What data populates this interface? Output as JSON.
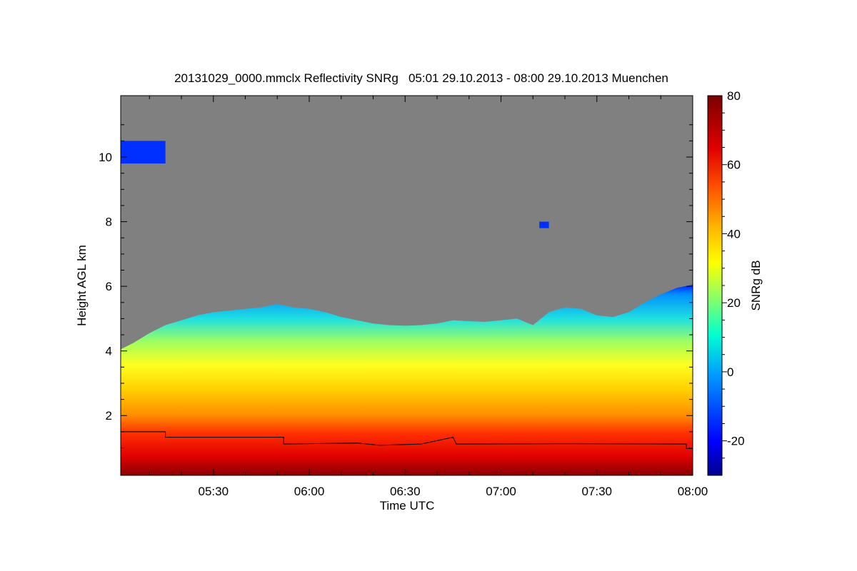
{
  "chart_data": {
    "type": "heatmap",
    "title": "20131029_0000.mmclx Reflectivity SNRg   05:01 29.10.2013 - 08:00 29.10.2013 Muenchen",
    "xlabel": "Time UTC",
    "ylabel": "Height AGL km",
    "colorbar_label": "SNRg dB",
    "x_ticks": [
      {
        "value": 330,
        "label": "05:30"
      },
      {
        "value": 360,
        "label": "06:00"
      },
      {
        "value": 390,
        "label": "06:30"
      },
      {
        "value": 420,
        "label": "07:00"
      },
      {
        "value": 450,
        "label": "07:30"
      },
      {
        "value": 480,
        "label": "08:00"
      }
    ],
    "x_range_minutes": [
      301,
      480
    ],
    "y_ticks": [
      {
        "value": 2,
        "label": "2"
      },
      {
        "value": 4,
        "label": "4"
      },
      {
        "value": 6,
        "label": "6"
      },
      {
        "value": 8,
        "label": "8"
      },
      {
        "value": 10,
        "label": "10"
      }
    ],
    "ylim": [
      0.15,
      11.9
    ],
    "colorbar": {
      "range": [
        -30,
        80
      ],
      "ticks": [
        {
          "value": -20,
          "label": "-20"
        },
        {
          "value": 0,
          "label": "0"
        },
        {
          "value": 20,
          "label": "20"
        },
        {
          "value": 40,
          "label": "40"
        },
        {
          "value": 60,
          "label": "60"
        },
        {
          "value": 80,
          "label": "80"
        }
      ]
    },
    "cloud_top_km": [
      [
        301,
        4.05
      ],
      [
        305,
        4.25
      ],
      [
        310,
        4.55
      ],
      [
        315,
        4.8
      ],
      [
        320,
        4.95
      ],
      [
        325,
        5.1
      ],
      [
        330,
        5.2
      ],
      [
        335,
        5.25
      ],
      [
        340,
        5.3
      ],
      [
        345,
        5.35
      ],
      [
        350,
        5.45
      ],
      [
        355,
        5.35
      ],
      [
        360,
        5.3
      ],
      [
        365,
        5.2
      ],
      [
        370,
        5.05
      ],
      [
        375,
        4.95
      ],
      [
        380,
        4.85
      ],
      [
        385,
        4.8
      ],
      [
        390,
        4.78
      ],
      [
        395,
        4.8
      ],
      [
        400,
        4.85
      ],
      [
        405,
        4.95
      ],
      [
        410,
        4.92
      ],
      [
        415,
        4.9
      ],
      [
        420,
        4.95
      ],
      [
        425,
        5.0
      ],
      [
        430,
        4.8
      ],
      [
        435,
        5.2
      ],
      [
        440,
        5.35
      ],
      [
        445,
        5.3
      ],
      [
        450,
        5.1
      ],
      [
        455,
        5.05
      ],
      [
        460,
        5.2
      ],
      [
        465,
        5.5
      ],
      [
        470,
        5.75
      ],
      [
        475,
        5.95
      ],
      [
        480,
        6.05
      ]
    ],
    "boundary_line_km": [
      [
        301,
        1.5
      ],
      [
        315,
        1.5
      ],
      [
        315,
        1.33
      ],
      [
        352,
        1.33
      ],
      [
        352,
        1.12
      ],
      [
        375,
        1.15
      ],
      [
        382,
        1.08
      ],
      [
        395,
        1.12
      ],
      [
        405,
        1.33
      ],
      [
        406,
        1.12
      ],
      [
        440,
        1.13
      ],
      [
        478,
        1.12
      ],
      [
        478,
        0.98
      ],
      [
        480,
        0.98
      ]
    ],
    "upper_cloud_patches": [
      {
        "x": [
          301,
          315
        ],
        "y": [
          9.8,
          10.5
        ],
        "dB": -15
      },
      {
        "x": [
          432,
          435
        ],
        "y": [
          7.8,
          8.0
        ],
        "dB": -15
      }
    ]
  }
}
